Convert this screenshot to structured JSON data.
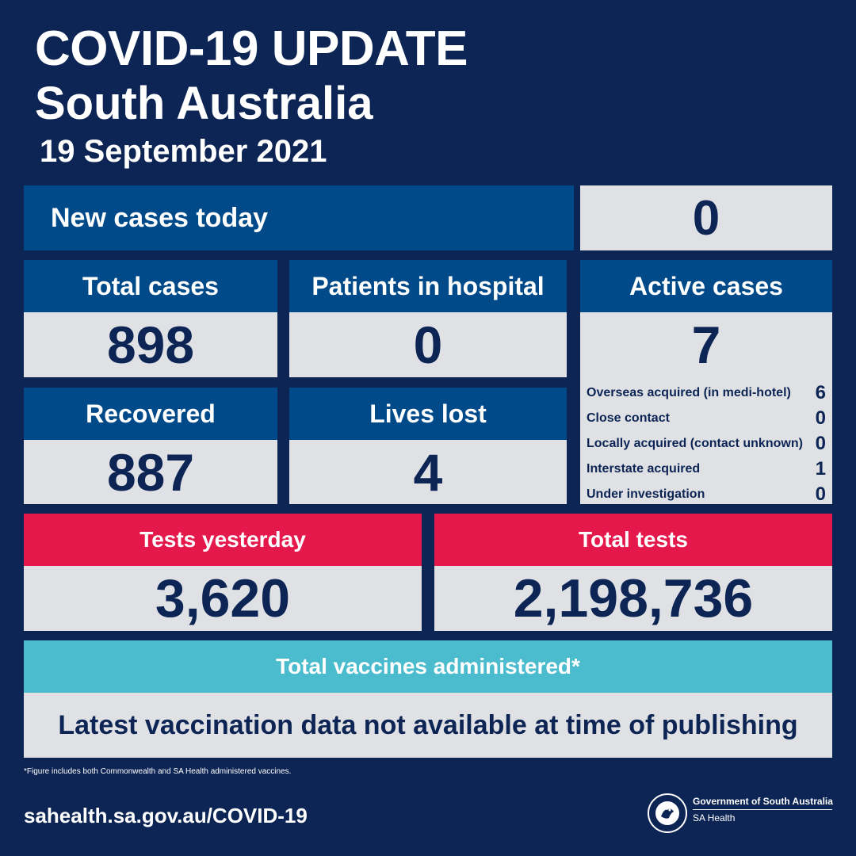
{
  "header": {
    "title": "COVID-19 UPDATE",
    "subtitle": "South Australia",
    "date": "19 September 2021"
  },
  "new_cases": {
    "label": "New cases today",
    "value": "0"
  },
  "stats": {
    "total_cases": {
      "label": "Total cases",
      "value": "898"
    },
    "patients_in_hospital": {
      "label": "Patients in hospital",
      "value": "0"
    },
    "active_cases": {
      "label": "Active cases",
      "value": "7"
    },
    "recovered": {
      "label": "Recovered",
      "value": "887"
    },
    "lives_lost": {
      "label": "Lives lost",
      "value": "4"
    }
  },
  "active_breakdown": [
    {
      "label": "Overseas acquired (in medi-hotel)",
      "value": "6"
    },
    {
      "label": "Close contact",
      "value": "0"
    },
    {
      "label": "Locally acquired (contact unknown)",
      "value": "0"
    },
    {
      "label": "Interstate acquired",
      "value": "1"
    },
    {
      "label": "Under investigation",
      "value": "0"
    }
  ],
  "tests": {
    "yesterday": {
      "label": "Tests yesterday",
      "value": "3,620"
    },
    "total": {
      "label": "Total tests",
      "value": "2,198,736"
    }
  },
  "vaccines": {
    "label": "Total vaccines administered*",
    "value": "Latest vaccination data not available at time of publishing",
    "footnote": "*Figure includes both Commonwealth and SA Health administered vaccines."
  },
  "footer": {
    "url": "sahealth.sa.gov.au/COVID-19",
    "gov_name": "Government of South Australia",
    "dept": "SA Health",
    "logo_text": "SOUTH AUSTRALIA",
    "logo_icon": "state-piping-shrike-emblem"
  },
  "colors": {
    "background": "#0d2554",
    "panel_blue": "#004a89",
    "panel_red": "#e5184b",
    "panel_teal": "#4bbccd",
    "panel_grey": "#dfe1e5",
    "value_text": "#0d2554"
  }
}
